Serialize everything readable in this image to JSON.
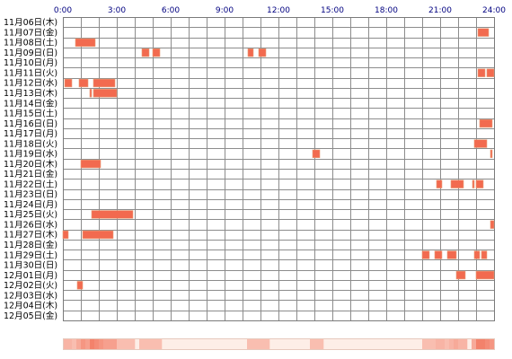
{
  "chart_data": {
    "type": "timeline",
    "x_unit": "hour of day",
    "xlim": [
      0,
      24
    ],
    "x_ticks": [
      "0:00",
      "3:00",
      "6:00",
      "9:00",
      "12:00",
      "15:00",
      "18:00",
      "21:00",
      "24:00"
    ],
    "days": [
      "11月06日(木)",
      "11月07日(金)",
      "11月08日(土)",
      "11月09日(日)",
      "11月10日(月)",
      "11月11日(火)",
      "11月12日(水)",
      "11月13日(木)",
      "11月14日(金)",
      "11月15日(土)",
      "11月16日(日)",
      "11月17日(月)",
      "11月18日(火)",
      "11月19日(水)",
      "11月20日(木)",
      "11月21日(金)",
      "11月22日(土)",
      "11月23日(日)",
      "11月24日(月)",
      "11月25日(火)",
      "11月26日(水)",
      "11月27日(木)",
      "11月28日(金)",
      "11月29日(土)",
      "11月30日(日)",
      "12月01日(月)",
      "12月02日(火)",
      "12月03日(水)",
      "12月04日(木)",
      "12月05日(金)"
    ],
    "activity": [
      {
        "day": "11月07日(金)",
        "blocks": [
          [
            23.1,
            23.7
          ]
        ]
      },
      {
        "day": "11月08日(土)",
        "blocks": [
          [
            0.7,
            1.8
          ]
        ]
      },
      {
        "day": "11月09日(日)",
        "blocks": [
          [
            4.4,
            4.8
          ],
          [
            5.0,
            5.4
          ],
          [
            10.3,
            10.6
          ],
          [
            10.9,
            11.3
          ]
        ]
      },
      {
        "day": "11月11日(火)",
        "blocks": [
          [
            23.1,
            23.5
          ],
          [
            23.6,
            24.0
          ]
        ]
      },
      {
        "day": "11月12日(水)",
        "blocks": [
          [
            0.1,
            0.5
          ],
          [
            0.9,
            1.4
          ],
          [
            1.7,
            2.9
          ]
        ]
      },
      {
        "day": "11月13日(木)",
        "blocks": [
          [
            1.5,
            1.6
          ],
          [
            1.7,
            3.0
          ]
        ]
      },
      {
        "day": "11月16日(日)",
        "blocks": [
          [
            23.2,
            23.9
          ]
        ]
      },
      {
        "day": "11月18日(火)",
        "blocks": [
          [
            22.9,
            23.6
          ]
        ]
      },
      {
        "day": "11月19日(水)",
        "blocks": [
          [
            13.9,
            14.3
          ],
          [
            23.8,
            23.9
          ]
        ]
      },
      {
        "day": "11月20日(木)",
        "blocks": [
          [
            1.0,
            2.1
          ]
        ]
      },
      {
        "day": "11月22日(土)",
        "blocks": [
          [
            20.8,
            21.1
          ],
          [
            21.6,
            22.3
          ],
          [
            22.8,
            22.9
          ],
          [
            23.0,
            23.4
          ]
        ]
      },
      {
        "day": "11月25日(火)",
        "blocks": [
          [
            1.6,
            3.9
          ]
        ]
      },
      {
        "day": "11月26日(水)",
        "blocks": [
          [
            23.8,
            24.0
          ]
        ]
      },
      {
        "day": "11月27日(木)",
        "blocks": [
          [
            0.0,
            0.3
          ],
          [
            1.1,
            2.8
          ]
        ]
      },
      {
        "day": "11月29日(土)",
        "blocks": [
          [
            20.0,
            20.4
          ],
          [
            20.7,
            21.1
          ],
          [
            21.4,
            21.9
          ],
          [
            22.9,
            23.2
          ],
          [
            23.3,
            23.6
          ]
        ]
      },
      {
        "day": "12月01日(月)",
        "blocks": [
          [
            21.9,
            22.4
          ],
          [
            23.0,
            24.0
          ]
        ]
      },
      {
        "day": "12月02日(火)",
        "blocks": [
          [
            0.8,
            1.1
          ]
        ]
      }
    ],
    "colors": {
      "block_fill": "#f26a4f",
      "block_edge": "#e8a07a",
      "grid": "#8c8c8c",
      "frame": "#7a7a7a",
      "hour_label": "#000080",
      "summary_base": "#fdeee7",
      "summary_peak": "#f3826b"
    }
  }
}
